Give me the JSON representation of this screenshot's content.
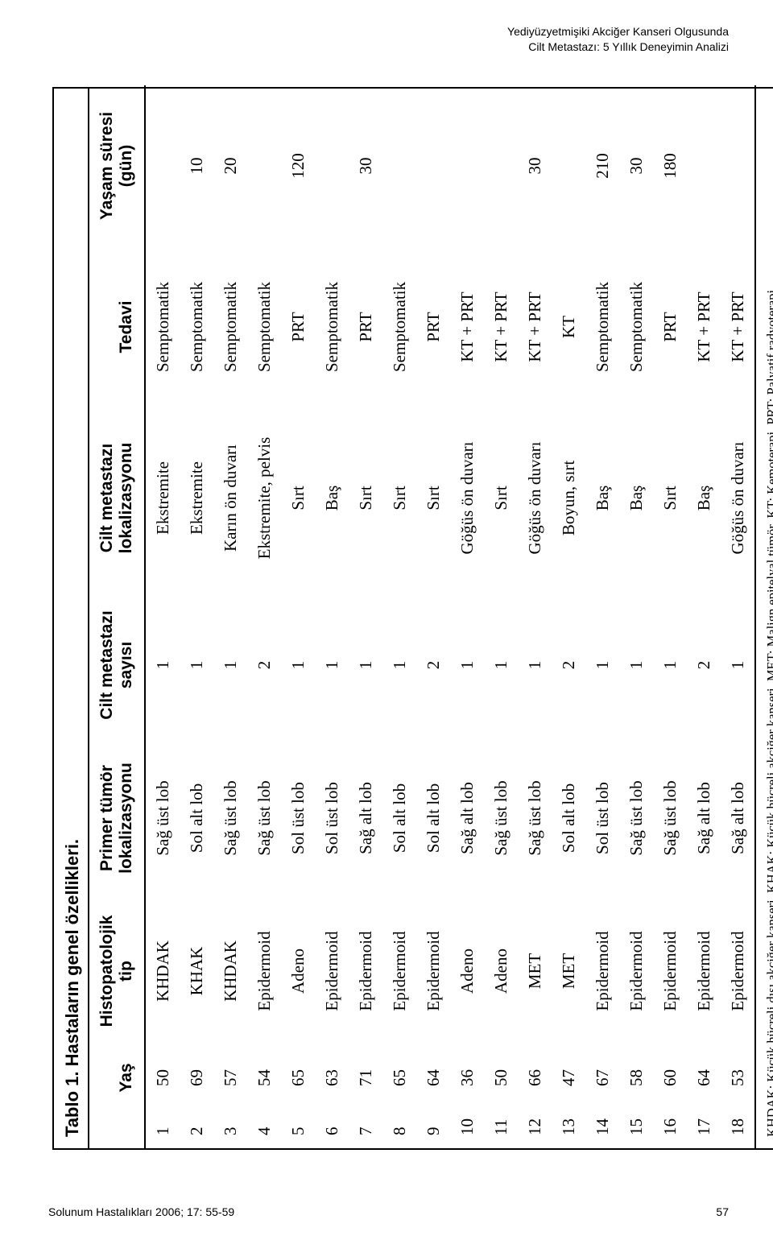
{
  "header": {
    "line1": "Yediyüzyetmişiki Akciğer Kanseri Olgusunda",
    "line2": "Cilt Metastazı: 5 Yıllık Deneyimin Analizi"
  },
  "table": {
    "caption": "Tablo 1. Hastaların genel özellikleri.",
    "columns": {
      "idx": "",
      "yas": "Yaş",
      "histo": "Histopatolojik\ntip",
      "primer": "Primer tümör\nlokalizasyonu",
      "sayi": "Cilt metastazı\nsayısı",
      "lokal": "Cilt metastazı\nlokalizasyonu",
      "tedavi": "Tedavi",
      "yasam": "Yaşam süresi\n(gün)"
    },
    "rows": [
      {
        "idx": "1",
        "yas": "50",
        "histo": "KHDAK",
        "primer": "Sağ üst lob",
        "sayi": "1",
        "lokal": "Ekstremite",
        "tedavi": "Semptomatik",
        "yasam": ""
      },
      {
        "idx": "2",
        "yas": "69",
        "histo": "KHAK",
        "primer": "Sol alt lob",
        "sayi": "1",
        "lokal": "Ekstremite",
        "tedavi": "Semptomatik",
        "yasam": "10"
      },
      {
        "idx": "3",
        "yas": "57",
        "histo": "KHDAK",
        "primer": "Sağ üst lob",
        "sayi": "1",
        "lokal": "Karın ön duvarı",
        "tedavi": "Semptomatik",
        "yasam": "20"
      },
      {
        "idx": "4",
        "yas": "54",
        "histo": "Epidermoid",
        "primer": "Sağ üst lob",
        "sayi": "2",
        "lokal": "Ekstremite, pelvis",
        "tedavi": "Semptomatik",
        "yasam": ""
      },
      {
        "idx": "5",
        "yas": "65",
        "histo": "Adeno",
        "primer": "Sol üst lob",
        "sayi": "1",
        "lokal": "Sırt",
        "tedavi": "PRT",
        "yasam": "120"
      },
      {
        "idx": "6",
        "yas": "63",
        "histo": "Epidermoid",
        "primer": "Sol üst lob",
        "sayi": "1",
        "lokal": "Baş",
        "tedavi": "Semptomatik",
        "yasam": ""
      },
      {
        "idx": "7",
        "yas": "71",
        "histo": "Epidermoid",
        "primer": "Sağ alt lob",
        "sayi": "1",
        "lokal": "Sırt",
        "tedavi": "PRT",
        "yasam": "30"
      },
      {
        "idx": "8",
        "yas": "65",
        "histo": "Epidermoid",
        "primer": "Sol alt lob",
        "sayi": "1",
        "lokal": "Sırt",
        "tedavi": "Semptomatik",
        "yasam": ""
      },
      {
        "idx": "9",
        "yas": "64",
        "histo": "Epidermoid",
        "primer": "Sol alt lob",
        "sayi": "2",
        "lokal": "Sırt",
        "tedavi": "PRT",
        "yasam": ""
      },
      {
        "idx": "10",
        "yas": "36",
        "histo": "Adeno",
        "primer": "Sağ alt lob",
        "sayi": "1",
        "lokal": "Göğüs ön duvarı",
        "tedavi": "KT + PRT",
        "yasam": ""
      },
      {
        "idx": "11",
        "yas": "50",
        "histo": "Adeno",
        "primer": "Sağ üst lob",
        "sayi": "1",
        "lokal": "Sırt",
        "tedavi": "KT + PRT",
        "yasam": ""
      },
      {
        "idx": "12",
        "yas": "66",
        "histo": "MET",
        "primer": "Sağ üst lob",
        "sayi": "1",
        "lokal": "Göğüs ön duvarı",
        "tedavi": "KT + PRT",
        "yasam": "30"
      },
      {
        "idx": "13",
        "yas": "47",
        "histo": "MET",
        "primer": "Sol alt lob",
        "sayi": "2",
        "lokal": "Boyun, sırt",
        "tedavi": "KT",
        "yasam": ""
      },
      {
        "idx": "14",
        "yas": "67",
        "histo": "Epidermoid",
        "primer": "Sol üst lob",
        "sayi": "1",
        "lokal": "Baş",
        "tedavi": "Semptomatik",
        "yasam": "210"
      },
      {
        "idx": "15",
        "yas": "58",
        "histo": "Epidermoid",
        "primer": "Sağ üst lob",
        "sayi": "1",
        "lokal": "Baş",
        "tedavi": "Semptomatik",
        "yasam": "30"
      },
      {
        "idx": "16",
        "yas": "60",
        "histo": "Epidermoid",
        "primer": "Sağ üst lob",
        "sayi": "1",
        "lokal": "Sırt",
        "tedavi": "PRT",
        "yasam": "180"
      },
      {
        "idx": "17",
        "yas": "64",
        "histo": "Epidermoid",
        "primer": "Sağ alt lob",
        "sayi": "2",
        "lokal": "Baş",
        "tedavi": "KT + PRT",
        "yasam": ""
      },
      {
        "idx": "18",
        "yas": "53",
        "histo": "Epidermoid",
        "primer": "Sağ alt lob",
        "sayi": "1",
        "lokal": "Göğüs ön duvarı",
        "tedavi": "KT + PRT",
        "yasam": ""
      }
    ],
    "footnote": "KHDAK: Küçük hücreli dışı akciğer kanseri, KHAK: Küçük hücreli akciğer kanseri, MET: Malign epitelyal tümör, KT: Kemoterapi, PRT: Palyatif radyoterapi."
  },
  "footer": {
    "journal": "Solunum Hastalıkları 2006; 17: 55-59",
    "page": "57"
  }
}
